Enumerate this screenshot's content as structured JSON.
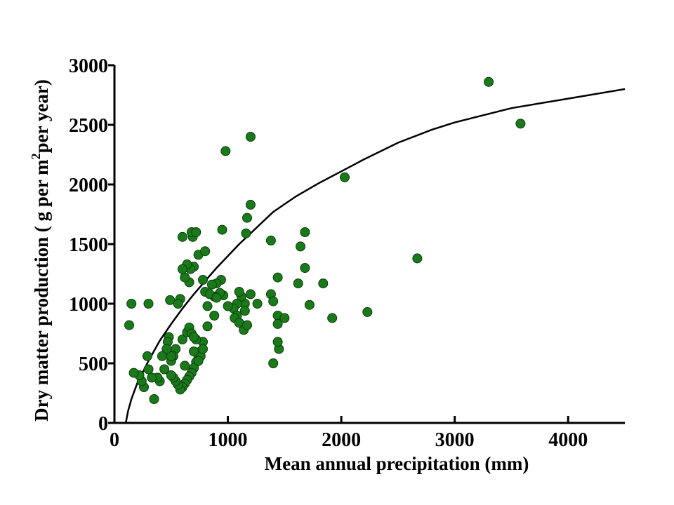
{
  "chart_data": {
    "type": "scatter",
    "xlabel": "Mean annual precipitation (mm)",
    "ylabel_parts": [
      "Dry matter production ( g per m",
      "2",
      "per year)"
    ],
    "xlim": [
      0,
      4500
    ],
    "ylim": [
      0,
      3000
    ],
    "x_ticks": [
      0,
      1000,
      2000,
      3000,
      4000
    ],
    "y_ticks": [
      0,
      500,
      1000,
      1500,
      2000,
      2500,
      3000
    ],
    "grid": false,
    "colors": {
      "points": "#1a7a1a",
      "fit_line": "#000000"
    },
    "fit_curve": {
      "x": [
        100,
        120,
        150,
        200,
        300,
        400,
        500,
        600,
        700,
        800,
        900,
        1000,
        1100,
        1200,
        1300,
        1400,
        1600,
        1800,
        2000,
        2200,
        2500,
        2800,
        3000,
        3500,
        4000,
        4500
      ],
      "y": [
        0,
        100,
        200,
        330,
        520,
        690,
        830,
        960,
        1080,
        1190,
        1300,
        1400,
        1500,
        1590,
        1680,
        1770,
        1900,
        2010,
        2110,
        2210,
        2350,
        2460,
        2520,
        2640,
        2720,
        2800
      ]
    },
    "series": [
      {
        "x": [
          3300,
          3580,
          2030,
          2670,
          2230,
          1920,
          1840,
          1720,
          1680,
          1680,
          1640,
          1620,
          1200,
          1200,
          980,
          1170,
          1160,
          950,
          1380,
          1440,
          1380,
          1400,
          1440,
          1440,
          1500,
          1400,
          1450,
          1440,
          1260,
          1200,
          1150,
          1120,
          1100,
          1080,
          1050,
          1080,
          1000,
          1060,
          1100,
          1140,
          1170,
          1150,
          960,
          930,
          940,
          900,
          880,
          880,
          820,
          800,
          780,
          740,
          700,
          690,
          680,
          670,
          660,
          640,
          620,
          600,
          600,
          580,
          560,
          540,
          520,
          500,
          500,
          480,
          470,
          460,
          440,
          420,
          400,
          380,
          350,
          330,
          300,
          290,
          260,
          240,
          220,
          170,
          150,
          130,
          300,
          490,
          720,
          800,
          840,
          860,
          900,
          820,
          780,
          760,
          740,
          720,
          700,
          680,
          660,
          640,
          620,
          600,
          580,
          560,
          540,
          520,
          500,
          760,
          780,
          600,
          640,
          700,
          720,
          740,
          620,
          660,
          680,
          700
        ],
        "y": [
          2860,
          2510,
          2060,
          1380,
          930,
          880,
          1170,
          990,
          1300,
          1600,
          1480,
          1170,
          2400,
          1830,
          2280,
          1720,
          1590,
          1620,
          1530,
          1220,
          1080,
          1020,
          900,
          830,
          880,
          500,
          620,
          680,
          1000,
          1080,
          1000,
          1060,
          1100,
          1000,
          960,
          900,
          980,
          880,
          840,
          780,
          820,
          940,
          1070,
          1090,
          1200,
          1170,
          1060,
          900,
          980,
          1100,
          1200,
          1410,
          1310,
          1560,
          1600,
          1290,
          1180,
          1330,
          1220,
          1290,
          1560,
          1040,
          1000,
          620,
          560,
          520,
          560,
          720,
          680,
          620,
          450,
          560,
          350,
          380,
          200,
          380,
          450,
          560,
          300,
          350,
          400,
          420,
          1000,
          820,
          1000,
          1030,
          1600,
          1440,
          1080,
          1160,
          1050,
          810,
          680,
          600,
          560,
          510,
          460,
          420,
          390,
          360,
          330,
          300,
          280,
          320,
          350,
          380,
          400,
          560,
          620,
          700,
          760,
          600,
          700,
          520,
          480,
          800,
          750,
          720
        ]
      }
    ]
  }
}
